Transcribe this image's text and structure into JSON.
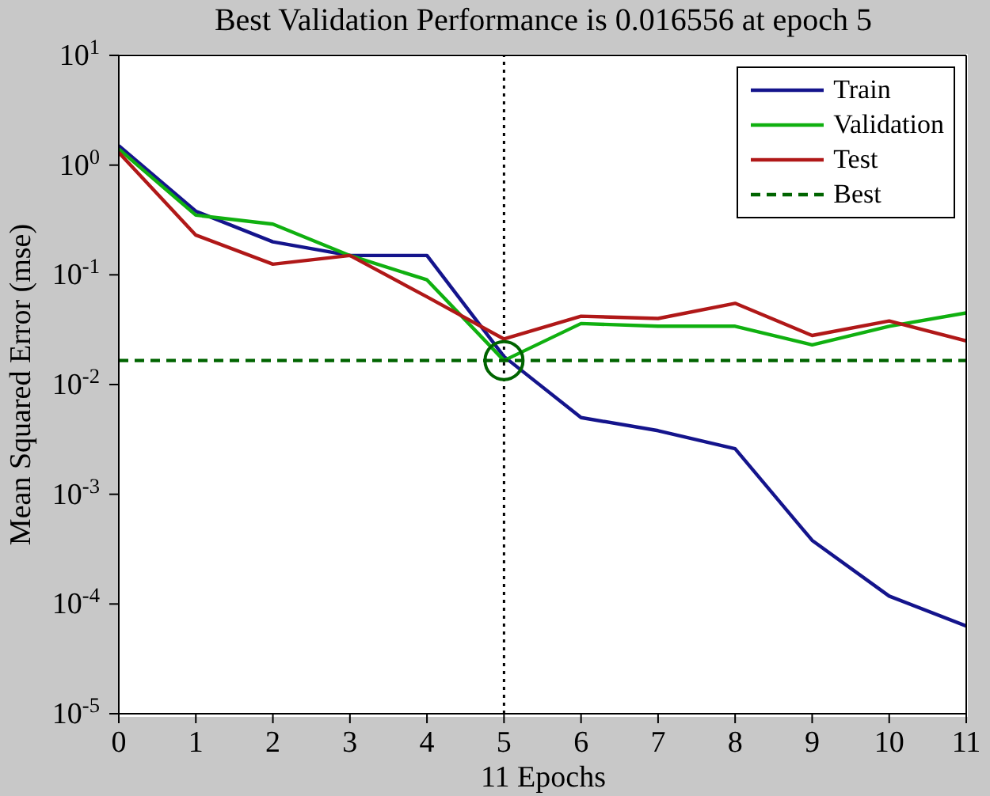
{
  "chart_data": {
    "type": "line",
    "title": "Best Validation Performance is 0.016556 at epoch 5",
    "xlabel": "11 Epochs",
    "ylabel": "Mean Squared Error  (mse)",
    "x": [
      0,
      1,
      2,
      3,
      4,
      5,
      6,
      7,
      8,
      9,
      10,
      11
    ],
    "series": [
      {
        "name": "Train",
        "color": "#14148c",
        "values": [
          1.5,
          0.38,
          0.2,
          0.15,
          0.15,
          0.018,
          0.005,
          0.0038,
          0.0026,
          0.00038,
          0.000118,
          6.3e-05
        ]
      },
      {
        "name": "Validation",
        "color": "#10b010",
        "values": [
          1.4,
          0.35,
          0.29,
          0.15,
          0.09,
          0.016556,
          0.036,
          0.034,
          0.034,
          0.023,
          0.034,
          0.045
        ]
      },
      {
        "name": "Test",
        "color": "#b01818",
        "values": [
          1.3,
          0.23,
          0.125,
          0.15,
          0.063,
          0.026,
          0.042,
          0.04,
          0.055,
          0.028,
          0.038,
          0.025
        ]
      },
      {
        "name": "Best",
        "type": "line",
        "color": "#006400",
        "line_style": "dashed",
        "x": [
          0,
          11
        ],
        "values": [
          0.016556,
          0.016556
        ]
      },
      {
        "type": "scatter",
        "color": "#006400",
        "marker": "circle",
        "x": [
          5
        ],
        "values": [
          0.016556
        ]
      }
    ],
    "ref_lines": [
      {
        "axis": "x",
        "value": 5,
        "color": "#000000",
        "line_style": "dotted"
      }
    ],
    "log": "y",
    "xlim": [
      0,
      11
    ],
    "xticks": [
      0,
      1,
      2,
      3,
      4,
      5,
      6,
      7,
      8,
      9,
      10,
      11
    ],
    "ylim": [
      1e-05,
      10
    ],
    "yticks": [
      {
        "value": 1e-05,
        "label": "10$^{-5}$"
      },
      {
        "value": 0.0001,
        "label": "10$^{-4}$"
      },
      {
        "value": 0.001,
        "label": "10$^{-3}$"
      },
      {
        "value": 0.01,
        "label": "10$^{-2}$"
      },
      {
        "value": 0.1,
        "label": "10$^{-1}$"
      },
      {
        "value": 1,
        "label": "10$^{0}$"
      },
      {
        "value": 10,
        "label": "10$^{1}$"
      }
    ],
    "legend": "top right",
    "line_style": "solid",
    "marker": "none"
  }
}
